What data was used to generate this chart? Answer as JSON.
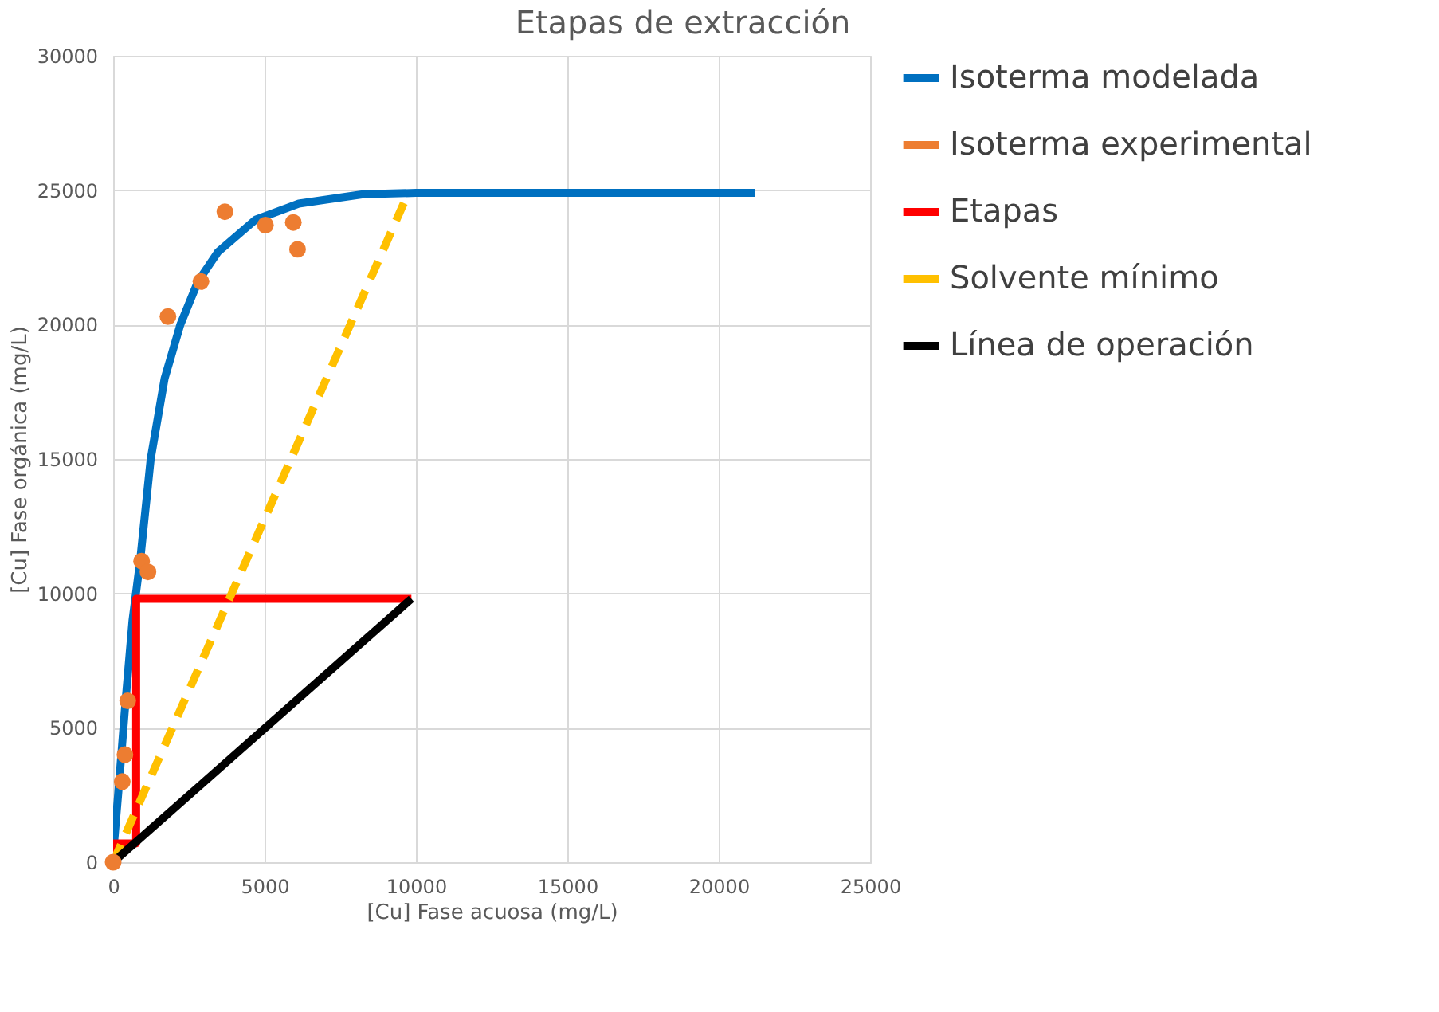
{
  "chart_data": {
    "type": "line",
    "title": "Etapas de extracción",
    "xlabel": "[Cu] Fase acuosa (mg/L)",
    "ylabel": "[Cu] Fase orgánica (mg/L)",
    "xlim": [
      0,
      25000
    ],
    "xticks": [
      0,
      5000,
      10000,
      15000,
      20000,
      25000
    ],
    "ylim": [
      0,
      30000
    ],
    "yticks": [
      0,
      5000,
      10000,
      15000,
      20000,
      25000,
      30000
    ],
    "grid": true,
    "legend": "right",
    "series": [
      {
        "name": "Isoterma modelada",
        "color": "#0070c0",
        "line_style": "solid",
        "x": [
          0,
          200,
          410,
          640,
          890,
          1240,
          1700,
          2220,
          2800,
          3460,
          4700,
          6130,
          8260,
          10000,
          15000,
          21200
        ],
        "values": [
          300,
          3000,
          6000,
          9000,
          11200,
          15000,
          18000,
          20000,
          21600,
          22700,
          23900,
          24500,
          24850,
          24900,
          24900,
          24900
        ]
      },
      {
        "name": "Isoterma experimental",
        "color": "#ed7d31",
        "type": "scatter",
        "marker": "circle",
        "x": [
          0,
          300,
          390,
          480,
          940,
          1150,
          1810,
          2900,
          3690,
          5030,
          5950,
          6090
        ],
        "values": [
          0,
          3000,
          4000,
          6000,
          11200,
          10800,
          20300,
          21600,
          24200,
          23700,
          23800,
          22800
        ]
      },
      {
        "name": "Etapas",
        "color": "#ff0000",
        "line_style": "solid",
        "x": [
          0,
          0,
          760,
          760,
          9850
        ],
        "values": [
          0,
          700,
          700,
          9800,
          9800
        ]
      },
      {
        "name": "Solvente mínimo",
        "color": "#ffc000",
        "line_style": "dashed",
        "x": [
          0,
          9750
        ],
        "values": [
          0,
          24900
        ]
      },
      {
        "name": "Línea de operación",
        "color": "#000000",
        "line_style": "solid",
        "x": [
          0,
          9850
        ],
        "values": [
          0,
          9800
        ]
      }
    ]
  }
}
